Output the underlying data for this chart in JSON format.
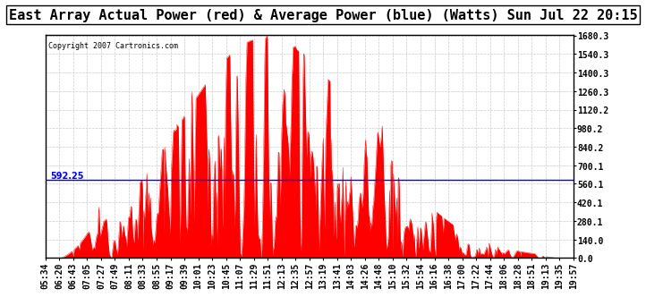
{
  "title": "East Array Actual Power (red) & Average Power (blue) (Watts) Sun Jul 22 20:15",
  "copyright": "Copyright 2007 Cartronics.com",
  "avg_power": 592.25,
  "ymin": 0.0,
  "ymax": 1680.3,
  "yticks": [
    0.0,
    140.0,
    280.1,
    420.1,
    560.1,
    700.1,
    840.2,
    980.2,
    1120.2,
    1260.3,
    1400.3,
    1540.3,
    1680.3
  ],
  "ytick_labels": [
    "0.0",
    "140.0",
    "280.1",
    "420.1",
    "560.1",
    "700.1",
    "840.2",
    "980.2",
    "1120.2",
    "1260.3",
    "1400.3",
    "1540.3",
    "1680.3"
  ],
  "xtick_labels": [
    "05:34",
    "06:20",
    "06:43",
    "07:05",
    "07:27",
    "07:49",
    "08:11",
    "08:33",
    "08:55",
    "09:17",
    "09:39",
    "10:01",
    "10:23",
    "10:45",
    "11:07",
    "11:29",
    "11:51",
    "12:13",
    "12:35",
    "12:57",
    "13:19",
    "13:41",
    "14:03",
    "14:26",
    "14:48",
    "15:10",
    "15:32",
    "15:54",
    "16:16",
    "16:38",
    "17:00",
    "17:22",
    "17:44",
    "18:06",
    "18:28",
    "18:51",
    "19:13",
    "19:35",
    "19:57"
  ],
  "fill_color": "#FF0000",
  "line_color": "#0000FF",
  "bg_color": "#FFFFFF",
  "grid_color": "#CCCCCC",
  "title_fontsize": 11,
  "label_fontsize": 7,
  "avg_label": "592.25"
}
